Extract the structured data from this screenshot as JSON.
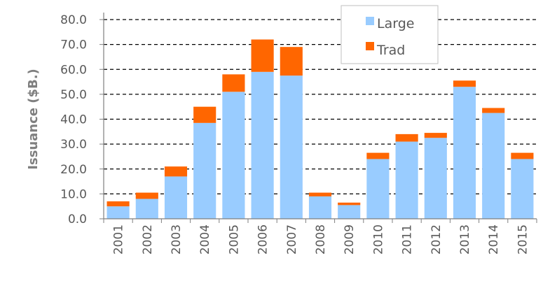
{
  "chart_data": {
    "type": "bar",
    "stacked": true,
    "title": "",
    "xlabel": "",
    "ylabel": "Issuance ($B.)",
    "ylim": [
      0,
      80
    ],
    "yticks": [
      "0.0",
      "10.0",
      "20.0",
      "30.0",
      "40.0",
      "50.0",
      "60.0",
      "70.0",
      "80.0"
    ],
    "categories": [
      "2001",
      "2002",
      "2003",
      "2004",
      "2005",
      "2006",
      "2007",
      "2008",
      "2009",
      "2010",
      "2011",
      "2012",
      "2013",
      "2014",
      "2015"
    ],
    "series": [
      {
        "name": "Large",
        "color": "#99ccff",
        "values": [
          5.0,
          8.0,
          17.0,
          38.5,
          51.0,
          59.0,
          57.5,
          9.0,
          5.5,
          24.0,
          31.0,
          32.5,
          53.0,
          42.5,
          24.0
        ]
      },
      {
        "name": "Trad",
        "color": "#ff6600",
        "values": [
          2.0,
          2.5,
          4.0,
          6.5,
          7.0,
          13.0,
          11.5,
          1.5,
          1.0,
          2.5,
          3.0,
          2.0,
          2.5,
          2.0,
          2.5
        ]
      }
    ],
    "grid": "horizontal-dashed",
    "legend": "top-right"
  }
}
